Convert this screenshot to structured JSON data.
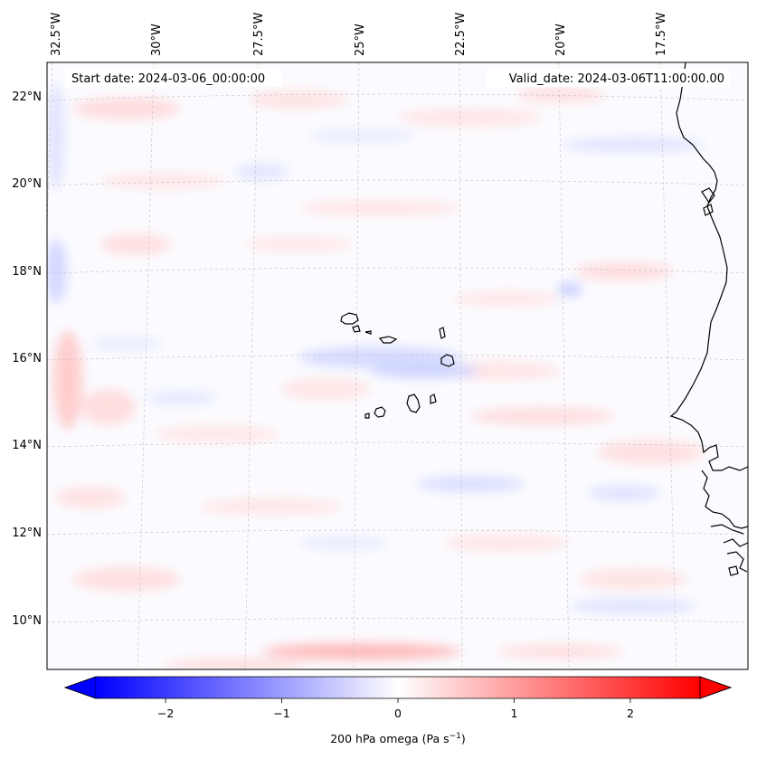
{
  "map": {
    "start_label": "Start date: 2024-03-06_00:00:00",
    "valid_label": "Valid_date: 2024-03-06T11:00:00.00",
    "lon_labels": [
      "32.5°W",
      "30°W",
      "27.5°W",
      "25°W",
      "22.5°W",
      "20°W",
      "17.5°W"
    ],
    "lat_labels": [
      "22°N",
      "20°N",
      "18°N",
      "16°N",
      "14°N",
      "12°N",
      "10°N"
    ]
  },
  "colorbar": {
    "label": "200 hPa omega (Pa s",
    "label_sup": "−1",
    "label_close": ")",
    "ticks": [
      "−2",
      "−1",
      "0",
      "1",
      "2"
    ],
    "tick_values": [
      -2,
      -1,
      0,
      1,
      2
    ],
    "range": [
      -2.6,
      2.6
    ],
    "colors": {
      "negative": "#0000ff",
      "zero": "#ffffff",
      "positive": "#ff0000"
    }
  }
}
